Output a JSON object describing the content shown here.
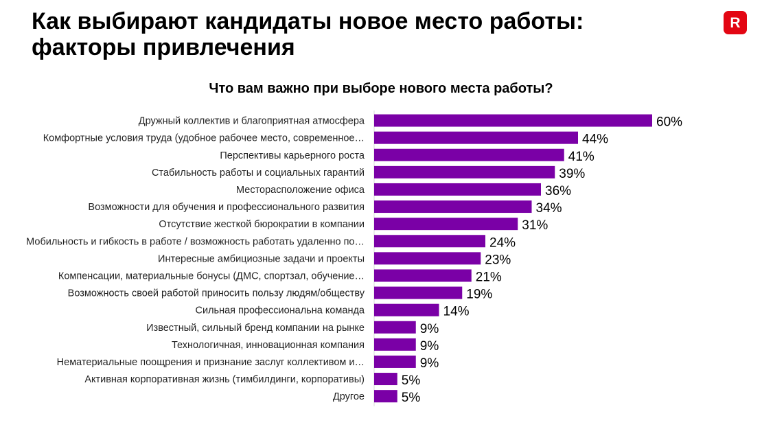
{
  "page": {
    "title_line1": "Как выбирают кандидаты новое место работы:",
    "title_line2": "факторы привлечения"
  },
  "logo": {
    "icon": "brand-r-icon",
    "letter": "R",
    "color": "#e30613"
  },
  "chart_data": {
    "type": "bar",
    "orientation": "horizontal",
    "title": "Что вам важно при выборе нового места работы?",
    "unit": "%",
    "bar_color": "#7a00a6",
    "xlim": [
      0,
      60
    ],
    "categories": [
      "Дружный коллектив и благоприятная атмосфера",
      "Комфортные условия труда (удобное рабочее место, современное…",
      "Перспективы карьерного роста",
      "Стабильность работы и социальных гарантий",
      "Месторасположение офиса",
      "Возможности для обучения и профессионального развития",
      "Отсутствие жесткой бюрократии в компании",
      "Мобильность и гибкость в работе / возможность работать удаленно по…",
      "Интересные амбициозные задачи и проекты",
      "Компенсации, материальные бонусы (ДМС, спортзал, обучение…",
      "Возможность своей работой приносить пользу людям/обществу",
      "Сильная профессиональна команда",
      "Известный, сильный бренд компании на рынке",
      "Технологичная, инновационная компания",
      "Нематериальные поощрения и признание заслуг коллективом и…",
      "Активная корпоративная жизнь (тимбилдинги, корпоративы)",
      "Другое"
    ],
    "values": [
      60,
      44,
      41,
      39,
      36,
      34,
      31,
      24,
      23,
      21,
      19,
      14,
      9,
      9,
      9,
      5,
      5
    ],
    "value_labels": [
      "60%",
      "44%",
      "41%",
      "39%",
      "36%",
      "34%",
      "31%",
      "24%",
      "23%",
      "21%",
      "19%",
      "14%",
      "9%",
      "9%",
      "9%",
      "5%",
      "5%"
    ],
    "grid": false,
    "legend": "none"
  }
}
